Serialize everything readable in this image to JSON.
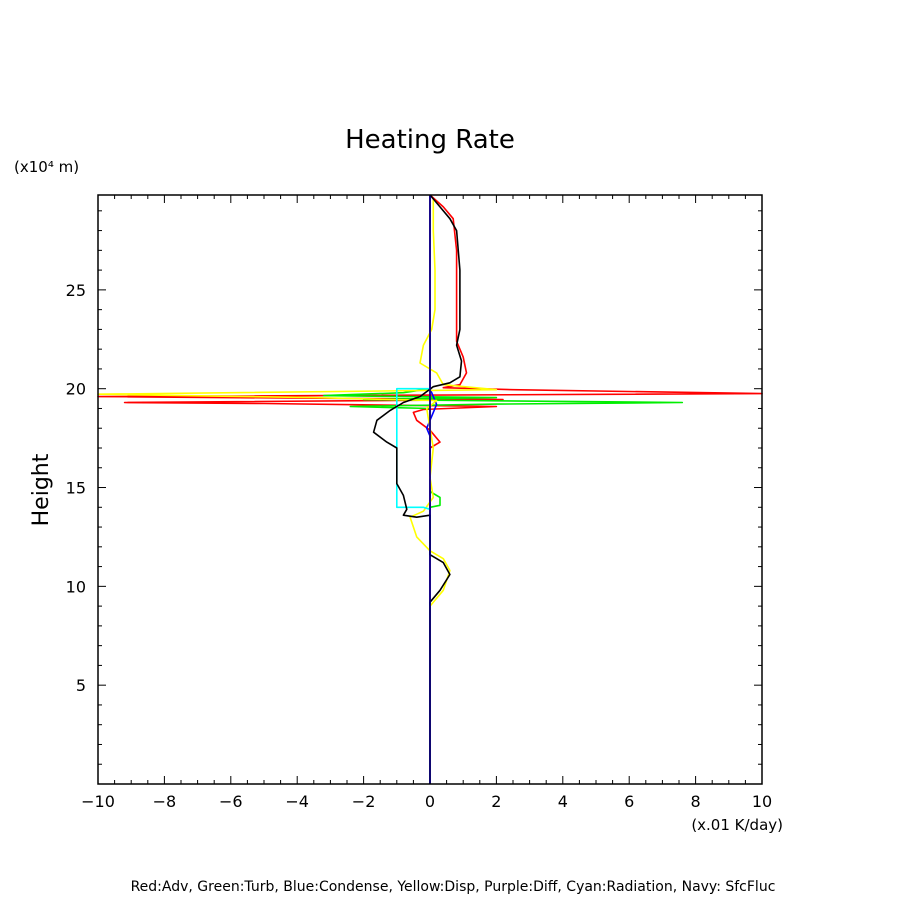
{
  "chart_data": {
    "type": "line",
    "title": "Heating Rate",
    "ylabel": "Height",
    "y_unit": "(x10⁴ m)",
    "x_unit": "(x.01 K/day)",
    "xlim": [
      -10,
      10
    ],
    "ylim": [
      0,
      29.8
    ],
    "x_ticks": [
      "−10",
      "−8",
      "−6",
      "−4",
      "−2",
      "0",
      "2",
      "4",
      "6",
      "8",
      "10"
    ],
    "y_ticks": [
      "5",
      "10",
      "15",
      "20",
      "25"
    ],
    "y_tick_values": [
      5,
      10,
      15,
      20,
      25
    ],
    "footer": "Red:Adv, Green:Turb, Blue:Condense, Yellow:Disp, Purple:Diff, Cyan:Radiation, Navy: SfcFluc",
    "series": [
      {
        "key": "adv",
        "color": "#ff0000",
        "points": [
          [
            0,
            29.8
          ],
          [
            0.4,
            29.2
          ],
          [
            0.7,
            28.6
          ],
          [
            0.8,
            27
          ],
          [
            0.8,
            24
          ],
          [
            0.8,
            22.4
          ],
          [
            1.0,
            21.6
          ],
          [
            1.1,
            20.8
          ],
          [
            0.9,
            20.2
          ],
          [
            0.4,
            20.05
          ],
          [
            2.5,
            19.95
          ],
          [
            10,
            19.75
          ],
          [
            -10,
            19.6
          ],
          [
            2.2,
            19.45
          ],
          [
            -9.2,
            19.3
          ],
          [
            -5,
            19.25
          ],
          [
            2.0,
            19.1
          ],
          [
            0.5,
            19.0
          ],
          [
            -0.2,
            18.95
          ],
          [
            -0.5,
            18.8
          ],
          [
            -0.4,
            18.4
          ],
          [
            0,
            17.9
          ],
          [
            0.3,
            17.3
          ],
          [
            0,
            17
          ],
          [
            0,
            9.3
          ],
          [
            0,
            0
          ]
        ]
      },
      {
        "key": "turb",
        "color": "#00ee00",
        "points": [
          [
            0,
            29.8
          ],
          [
            0,
            20
          ],
          [
            -0.8,
            19.8
          ],
          [
            -3.2,
            19.65
          ],
          [
            2,
            19.55
          ],
          [
            -2,
            19.45
          ],
          [
            7.6,
            19.3
          ],
          [
            2,
            19.22
          ],
          [
            -2.4,
            19.1
          ],
          [
            0,
            19.0
          ],
          [
            0,
            14.8
          ],
          [
            0.3,
            14.5
          ],
          [
            0.3,
            14.1
          ],
          [
            0,
            14.0
          ],
          [
            0,
            0
          ]
        ]
      },
      {
        "key": "condense",
        "color": "#0000ff",
        "points": [
          [
            0,
            29.8
          ],
          [
            0,
            20
          ],
          [
            0.1,
            19.6
          ],
          [
            0.2,
            19.2
          ],
          [
            0.1,
            18.8
          ],
          [
            0,
            18.4
          ],
          [
            -0.1,
            18.0
          ],
          [
            0,
            17.6
          ],
          [
            0,
            0
          ]
        ]
      },
      {
        "key": "disp",
        "color": "#ffff00",
        "points": [
          [
            0.1,
            29.6
          ],
          [
            0.1,
            28
          ],
          [
            0.15,
            26
          ],
          [
            0.15,
            24
          ],
          [
            0.05,
            23
          ],
          [
            -0.2,
            22.2
          ],
          [
            -0.3,
            21.3
          ],
          [
            0.2,
            20.8
          ],
          [
            0.4,
            20.2
          ],
          [
            2,
            19.95
          ],
          [
            -10,
            19.72
          ],
          [
            -3.5,
            19.55
          ],
          [
            0.2,
            19.4
          ],
          [
            -0.1,
            19.0
          ],
          [
            0,
            18.0
          ],
          [
            0.1,
            17.0
          ],
          [
            0,
            15.5
          ],
          [
            0.1,
            14.5
          ],
          [
            -0.2,
            13.8
          ],
          [
            -0.6,
            13.5
          ],
          [
            -0.4,
            12.5
          ],
          [
            0,
            11.8
          ],
          [
            0.4,
            11.4
          ],
          [
            0.6,
            10.8
          ],
          [
            0.4,
            9.8
          ],
          [
            0,
            9.0
          ],
          [
            0,
            0
          ]
        ]
      },
      {
        "key": "diff",
        "color": "#aa00aa",
        "points": [
          [
            0,
            29.8
          ],
          [
            0,
            0
          ]
        ]
      },
      {
        "key": "radiation",
        "color": "#00ffff",
        "points": [
          [
            0,
            20.0
          ],
          [
            -1.0,
            20.0
          ],
          [
            -1.0,
            14.0
          ],
          [
            -0.2,
            14.0
          ],
          [
            0,
            13.9
          ]
        ]
      },
      {
        "key": "total",
        "color": "#000000",
        "points": [
          [
            0,
            29.8
          ],
          [
            0.3,
            29.2
          ],
          [
            0.6,
            28.6
          ],
          [
            0.8,
            28
          ],
          [
            0.9,
            26
          ],
          [
            0.9,
            23
          ],
          [
            0.8,
            22.2
          ],
          [
            0.95,
            21.4
          ],
          [
            0.9,
            20.6
          ],
          [
            0.6,
            20.3
          ],
          [
            0.1,
            20.1
          ],
          [
            -0.3,
            19.6
          ],
          [
            -0.8,
            19.3
          ],
          [
            -1.2,
            18.9
          ],
          [
            -1.6,
            18.4
          ],
          [
            -1.7,
            17.8
          ],
          [
            -1.3,
            17.3
          ],
          [
            -1.0,
            17.0
          ],
          [
            -1.0,
            16.0
          ],
          [
            -1.0,
            15.2
          ],
          [
            -0.8,
            14.6
          ],
          [
            -0.7,
            13.9
          ],
          [
            -0.8,
            13.6
          ],
          [
            -0.4,
            13.5
          ],
          [
            0,
            13.6
          ],
          [
            0,
            11.6
          ],
          [
            0.4,
            11.2
          ],
          [
            0.6,
            10.6
          ],
          [
            0.3,
            9.8
          ],
          [
            0,
            9.2
          ],
          [
            0,
            0
          ]
        ]
      },
      {
        "key": "sfcfluc",
        "color": "#000080",
        "points": [
          [
            0,
            29.8
          ],
          [
            0,
            0
          ]
        ]
      }
    ]
  }
}
